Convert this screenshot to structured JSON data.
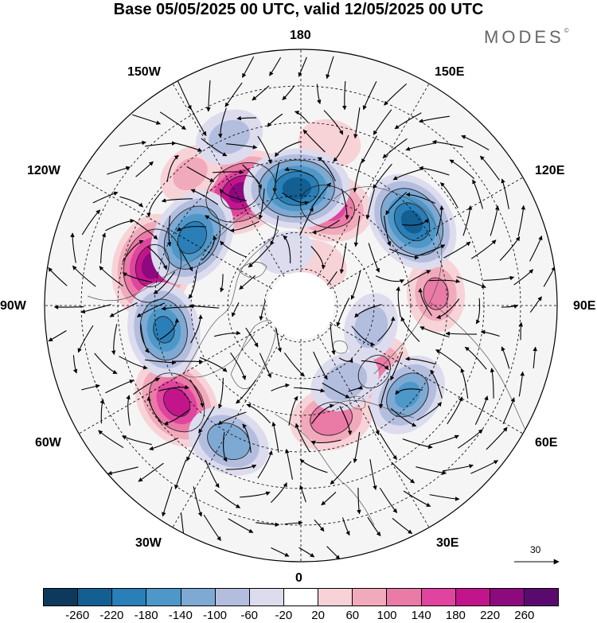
{
  "title": "Base 05/05/2025 00 UTC, valid 12/05/2025 00 UTC",
  "brand": "MODES",
  "brand_mark": "©",
  "longitude_labels": [
    "180",
    "150E",
    "120E",
    "90E",
    "60E",
    "30E",
    "0",
    "30W",
    "60W",
    "90W",
    "120W",
    "150W"
  ],
  "vector_reference": "30",
  "colorbar": {
    "ticks": [
      "-260",
      "-220",
      "-180",
      "-140",
      "-100",
      "-60",
      "-20",
      "20",
      "60",
      "100",
      "140",
      "180",
      "220",
      "260"
    ],
    "colors": [
      "#0d3a5c",
      "#145f91",
      "#2a7fb8",
      "#4d98c9",
      "#7ea9d3",
      "#b3bedf",
      "#dcdcee",
      "#ffffff",
      "#f7d3d8",
      "#f1aabb",
      "#ea7aa6",
      "#e0449f",
      "#c2158c",
      "#8c0a7d",
      "#5a0a6e"
    ]
  },
  "anomaly_centers": {
    "positive": [
      {
        "lat": 62,
        "lon": 165,
        "value": 170
      },
      {
        "lat": 55,
        "lon": -152,
        "value": 230
      },
      {
        "lat": 48,
        "lon": -105,
        "value": 235
      },
      {
        "lat": 47,
        "lon": -52,
        "value": 200
      },
      {
        "lat": 53,
        "lon": 95,
        "value": 110
      },
      {
        "lat": 63,
        "lon": 48,
        "value": 120
      },
      {
        "lat": 58,
        "lon": 15,
        "value": 135
      },
      {
        "lat": 78,
        "lon": 160,
        "value": 60
      },
      {
        "lat": 45,
        "lon": 170,
        "value": 60
      },
      {
        "lat": 43,
        "lon": -140,
        "value": 70
      }
    ],
    "negative": [
      {
        "lat": 58,
        "lon": -178,
        "value": -240
      },
      {
        "lat": 52,
        "lon": 127,
        "value": -230
      },
      {
        "lat": 55,
        "lon": -122,
        "value": -210
      },
      {
        "lat": 52,
        "lon": -80,
        "value": -190
      },
      {
        "lat": 52,
        "lon": 50,
        "value": -150
      },
      {
        "lat": 48,
        "lon": -28,
        "value": -140
      },
      {
        "lat": 70,
        "lon": 73,
        "value": -80
      },
      {
        "lat": 66,
        "lon": 30,
        "value": -90
      },
      {
        "lat": 40,
        "lon": -157,
        "value": -80
      },
      {
        "lat": 75,
        "lon": -165,
        "value": -40
      }
    ]
  }
}
